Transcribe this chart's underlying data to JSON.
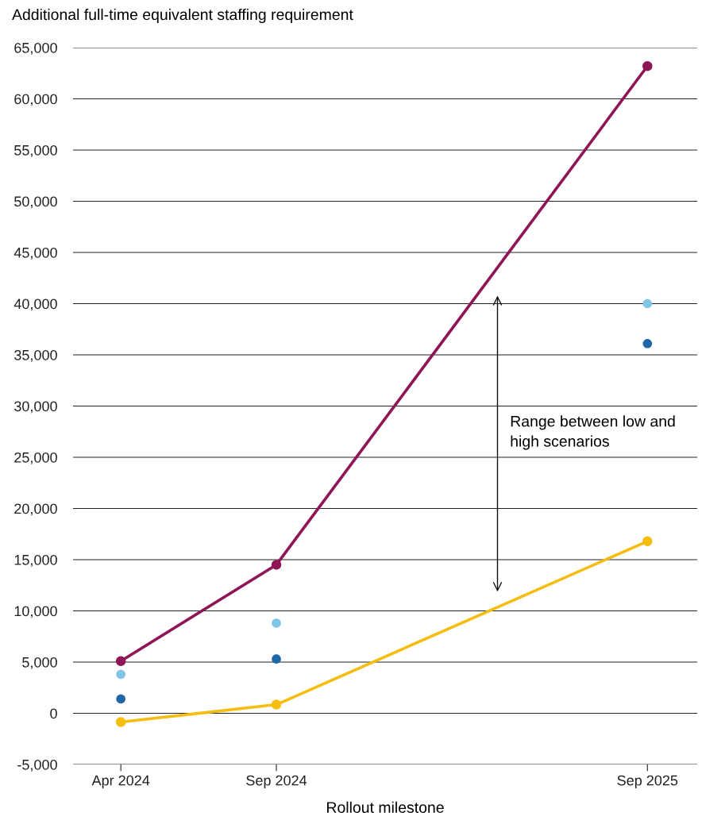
{
  "chart_data": {
    "type": "line",
    "title": "Additional full-time equivalent staffing requirement",
    "xlabel": "Rollout milestone",
    "x": [
      "2024-04",
      "2024-09",
      "2025-09"
    ],
    "series": [
      {
        "color": "#8e1556",
        "values": [
          5100,
          14500,
          63200
        ]
      },
      {
        "color": "#f5bd0f",
        "values": [
          -850,
          850,
          16800
        ]
      },
      {
        "type": "scatter",
        "color": "#80c4e6",
        "values": [
          3800,
          8800,
          40000
        ]
      },
      {
        "type": "scatter",
        "color": "#1f66a6",
        "values": [
          1400,
          5300,
          36100
        ]
      }
    ],
    "annotations": [
      "Range between low and high scenarios"
    ],
    "xlim": [
      "2024-02-14",
      "2025-10-20"
    ],
    "xticks": [
      {
        "value": "2024-04",
        "label": "Apr 2024"
      },
      {
        "value": "2024-09",
        "label": "Sep 2024"
      },
      {
        "value": "2025-09",
        "label": "Sep 2025"
      }
    ],
    "ylim": [
      -5000,
      65000
    ],
    "yticks": [
      {
        "value": -5000,
        "label": "-5,000"
      },
      0,
      {
        "value": 5000,
        "label": "5,000"
      },
      {
        "value": 10000,
        "label": "10,000"
      },
      {
        "value": 15000,
        "label": "15,000"
      },
      {
        "value": 20000,
        "label": "20,000"
      },
      {
        "value": 25000,
        "label": "25,000"
      },
      {
        "value": 30000,
        "label": "30,000"
      },
      {
        "value": 35000,
        "label": "35,000"
      },
      {
        "value": 40000,
        "label": "40,000"
      },
      {
        "value": 45000,
        "label": "45,000"
      },
      {
        "value": 50000,
        "label": "50,000"
      },
      {
        "value": 55000,
        "label": "55,000"
      },
      {
        "value": 60000,
        "label": "60,000"
      },
      {
        "value": 65000,
        "label": "65,000"
      }
    ],
    "grid": "y",
    "marker": "circle",
    "line_style": "solid"
  }
}
